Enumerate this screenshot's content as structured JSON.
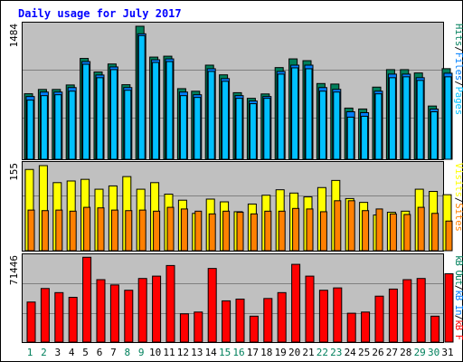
{
  "title": "Daily usage for July 2017",
  "colors": {
    "hits": "#00805c",
    "files": "#0080ff",
    "pages": "#00c0ff",
    "visits": "#ffff00",
    "sites": "#ff8000",
    "kbf": "#ff0000",
    "kbin": "#0080ff",
    "kbout": "#00805c",
    "panel_bg": "#c0c0c0",
    "title_color": "#0000ff",
    "weekend_color": "#00805c"
  },
  "chart_data": [
    {
      "type": "bar",
      "panel": "pages-files-hits",
      "max_label": "1484",
      "ylim": [
        0,
        1484
      ],
      "grid": true,
      "legend": [
        {
          "key": "pages",
          "text": "Pages"
        },
        {
          "key": "sep",
          "text": "/"
        },
        {
          "key": "files",
          "text": "Files"
        },
        {
          "key": "sep",
          "text": "/"
        },
        {
          "key": "hits",
          "text": "Hits"
        }
      ],
      "categories": [
        "1",
        "2",
        "3",
        "4",
        "5",
        "6",
        "7",
        "8",
        "9",
        "10",
        "11",
        "12",
        "13",
        "14",
        "15",
        "16",
        "17",
        "18",
        "19",
        "20",
        "21",
        "22",
        "23",
        "24",
        "25",
        "26",
        "27",
        "28",
        "29",
        "30",
        "31"
      ],
      "series": [
        {
          "name": "Hits",
          "values": [
            731,
            779,
            779,
            829,
            1125,
            974,
            1063,
            832,
            1484,
            1140,
            1150,
            788,
            759,
            1050,
            942,
            743,
            680,
            729,
            1023,
            1120,
            1100,
            845,
            839,
            571,
            561,
            805,
            1000,
            1000,
            963,
            594,
            1011
          ]
        },
        {
          "name": "Files",
          "values": [
            700,
            750,
            750,
            800,
            1090,
            940,
            1030,
            800,
            1400,
            1110,
            1120,
            750,
            720,
            1010,
            900,
            710,
            650,
            700,
            980,
            1050,
            1050,
            800,
            780,
            530,
            520,
            760,
            950,
            950,
            910,
            560,
            960
          ]
        },
        {
          "name": "Pages",
          "values": [
            660,
            710,
            720,
            760,
            1060,
            910,
            1000,
            770,
            1380,
            1080,
            1090,
            710,
            690,
            980,
            870,
            680,
            620,
            680,
            950,
            1020,
            1010,
            760,
            750,
            470,
            480,
            730,
            910,
            920,
            880,
            530,
            920
          ]
        }
      ]
    },
    {
      "type": "bar",
      "panel": "visits-sites",
      "max_label": "155",
      "ylim": [
        0,
        155
      ],
      "grid": true,
      "legend": [
        {
          "key": "sites",
          "text": "Sites"
        },
        {
          "key": "sep",
          "text": "/"
        },
        {
          "key": "visits",
          "text": "Visits"
        }
      ],
      "categories": [
        "1",
        "2",
        "3",
        "4",
        "5",
        "6",
        "7",
        "8",
        "9",
        "10",
        "11",
        "12",
        "13",
        "14",
        "15",
        "16",
        "17",
        "18",
        "19",
        "20",
        "21",
        "22",
        "23",
        "24",
        "25",
        "26",
        "27",
        "28",
        "29",
        "30",
        "31"
      ],
      "series": [
        {
          "name": "Visits",
          "values": [
            148,
            155,
            124,
            127,
            130,
            112,
            118,
            135,
            112,
            124,
            103,
            92,
            68,
            94,
            89,
            71,
            85,
            101,
            111,
            105,
            98,
            115,
            128,
            95,
            88,
            65,
            70,
            72,
            112,
            108,
            102
          ]
        },
        {
          "name": "Sites",
          "values": [
            74,
            73,
            74,
            72,
            79,
            78,
            74,
            73,
            74,
            72,
            79,
            76,
            72,
            67,
            72,
            70,
            67,
            72,
            72,
            77,
            76,
            71,
            91,
            91,
            73,
            76,
            67,
            66,
            79,
            68,
            54
          ]
        }
      ]
    },
    {
      "type": "bar",
      "panel": "kbytes",
      "max_label": "71446",
      "ylim": [
        0,
        71446
      ],
      "grid": true,
      "legend": [
        {
          "key": "kbf",
          "text": "kB F"
        },
        {
          "key": "sep",
          "text": "/"
        },
        {
          "key": "kbin",
          "text": "kB In"
        },
        {
          "key": "sep",
          "text": "/"
        },
        {
          "key": "kbout",
          "text": "kB Out"
        }
      ],
      "categories": [
        "1",
        "2",
        "3",
        "4",
        "5",
        "6",
        "7",
        "8",
        "9",
        "10",
        "11",
        "12",
        "13",
        "14",
        "15",
        "16",
        "17",
        "18",
        "19",
        "20",
        "21",
        "22",
        "23",
        "24",
        "25",
        "26",
        "27",
        "28",
        "29",
        "30",
        "31"
      ],
      "series": [
        {
          "name": "kB F",
          "values": [
            34000,
            45500,
            42000,
            38000,
            72000,
            53000,
            48500,
            44000,
            54000,
            56000,
            65000,
            24000,
            25500,
            62500,
            35000,
            36500,
            22000,
            37000,
            42000,
            66000,
            56000,
            44000,
            46000,
            24500,
            25500,
            39000,
            45000,
            53000,
            54000,
            22000,
            58000
          ]
        }
      ]
    }
  ],
  "xaxis": {
    "labels": [
      "1",
      "2",
      "3",
      "4",
      "5",
      "6",
      "7",
      "8",
      "9",
      "10",
      "11",
      "12",
      "13",
      "14",
      "15",
      "16",
      "17",
      "18",
      "19",
      "20",
      "21",
      "22",
      "23",
      "24",
      "25",
      "26",
      "27",
      "28",
      "29",
      "30",
      "31"
    ],
    "weekend": [
      1,
      2,
      8,
      9,
      15,
      16,
      22,
      23,
      29,
      30
    ]
  }
}
